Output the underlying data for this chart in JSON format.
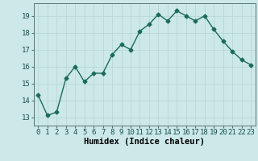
{
  "x": [
    0,
    1,
    2,
    3,
    4,
    5,
    6,
    7,
    8,
    9,
    10,
    11,
    12,
    13,
    14,
    15,
    16,
    17,
    18,
    19,
    20,
    21,
    22,
    23
  ],
  "y": [
    14.3,
    13.1,
    13.3,
    15.3,
    16.0,
    15.1,
    15.6,
    15.6,
    16.7,
    17.3,
    17.0,
    18.1,
    18.5,
    19.1,
    18.7,
    19.3,
    19.0,
    18.7,
    19.0,
    18.2,
    17.5,
    16.9,
    16.4,
    16.1
  ],
  "line_color": "#1a6b5a",
  "marker": "D",
  "markersize": 2.5,
  "linewidth": 1.0,
  "background_color": "#cce8e8",
  "grid_color": "#b8d8d8",
  "xlabel": "Humidex (Indice chaleur)",
  "xlabel_fontsize": 7.5,
  "tick_fontsize": 6.5,
  "ylim": [
    12.5,
    19.75
  ],
  "yticks": [
    13,
    14,
    15,
    16,
    17,
    18,
    19
  ],
  "xlim": [
    -0.5,
    23.5
  ],
  "xticks": [
    0,
    1,
    2,
    3,
    4,
    5,
    6,
    7,
    8,
    9,
    10,
    11,
    12,
    13,
    14,
    15,
    16,
    17,
    18,
    19,
    20,
    21,
    22,
    23
  ]
}
